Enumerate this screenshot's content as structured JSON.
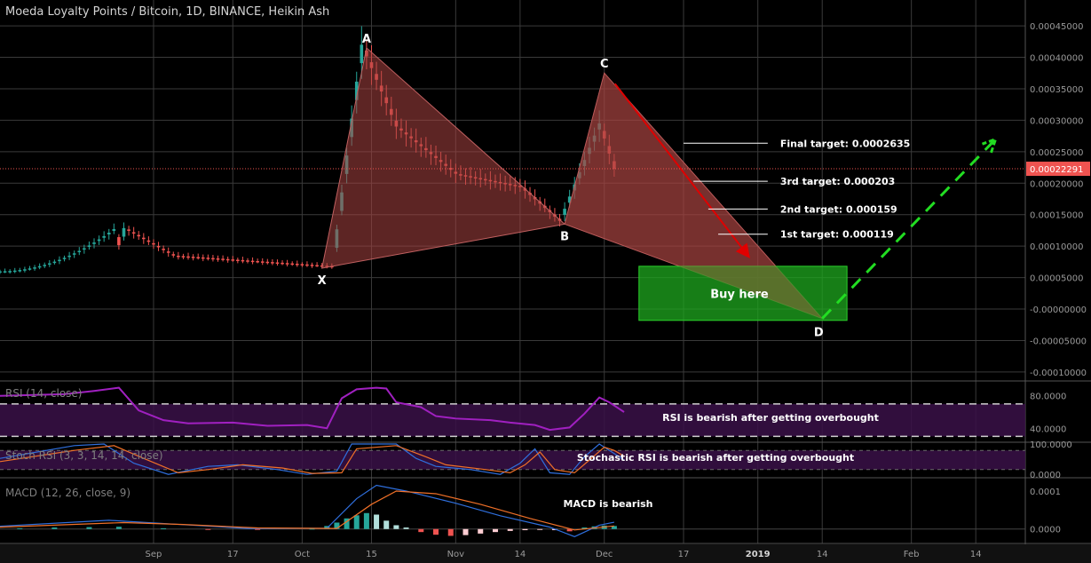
{
  "header": {
    "title": "Moeda Loyalty Points / Bitcoin, 1D, BINANCE, Heikin Ash"
  },
  "colors": {
    "background": "#000000",
    "grid": "#3a3a3a",
    "bull": "#26a69a",
    "bear": "#ef5350",
    "pattern_fill": "#a94442",
    "buy_zone": "#1fa81f",
    "target_arrow": "#e00000",
    "forecast_arrow": "#22dd22",
    "rsi_line": "#a020c0",
    "band_fill": "#3a1048",
    "macd_line": "#2f6fdd",
    "signal_line": "#f07028"
  },
  "chart_data": [
    {
      "type": "candlestick",
      "name": "main",
      "title": "Moeda Loyalty Points / Bitcoin, 1D, BINANCE, Heikin Ash",
      "ylim": [
        -0.00011,
        0.00046
      ],
      "y_ticks": [
        "0.00045000",
        "0.00040000",
        "0.00035000",
        "0.00030000",
        "0.00025000",
        "0.00020000",
        "0.00015000",
        "0.00010000",
        "0.00005000",
        "-0.00000000",
        "-0.00005000",
        "-0.00010000"
      ],
      "y_tick_values": [
        0.00045,
        0.0004,
        0.00035,
        0.0003,
        0.00025,
        0.0002,
        0.00015,
        0.0001,
        5e-05,
        0,
        -5e-05,
        -0.0001
      ],
      "x_ticks": [
        "Sep",
        "17",
        "Oct",
        "15",
        "Nov",
        "14",
        "Dec",
        "17",
        "2019",
        "14",
        "Feb",
        "14"
      ],
      "x_tick_dates": [
        "2018-09-01",
        "2018-09-17",
        "2018-10-01",
        "2018-10-15",
        "2018-11-01",
        "2018-11-14",
        "2018-12-01",
        "2018-12-17",
        "2019-01-01",
        "2019-01-14",
        "2019-02-01",
        "2019-02-14"
      ],
      "current_price": {
        "label": "0.00022291",
        "value": 0.00022291,
        "color": "#ef5350"
      },
      "key_prices": [
        {
          "date": "2018-08-25",
          "price": 0.000133
        },
        {
          "date": "2018-09-05",
          "price": 8.5e-05
        },
        {
          "date": "2018-10-07",
          "price": 6.8e-05
        },
        {
          "date": "2018-10-13",
          "price": 0.00042
        },
        {
          "date": "2018-10-20",
          "price": 0.00029
        },
        {
          "date": "2018-11-01",
          "price": 0.000215
        },
        {
          "date": "2018-11-14",
          "price": 0.000195
        },
        {
          "date": "2018-11-22",
          "price": 0.00014
        },
        {
          "date": "2018-11-30",
          "price": 0.000295
        },
        {
          "date": "2018-12-03",
          "price": 0.000223
        }
      ],
      "pattern_points": [
        {
          "label": "X",
          "date": "2018-10-05",
          "price": 6.5e-05
        },
        {
          "label": "A",
          "date": "2018-10-14",
          "price": 0.000415
        },
        {
          "label": "B",
          "date": "2018-11-23",
          "price": 0.000135
        },
        {
          "label": "C",
          "date": "2018-12-01",
          "price": 0.000375
        },
        {
          "label": "D",
          "date": "2019-01-14",
          "price": -1.5e-05
        }
      ],
      "targets": [
        {
          "label": "Final target: 0.0002635",
          "price": 0.0002635
        },
        {
          "label": "3rd target: 0.000203",
          "price": 0.000203
        },
        {
          "label": "2nd target: 0.000159",
          "price": 0.000159
        },
        {
          "label": "1st target: 0.000119",
          "price": 0.000119
        }
      ],
      "buy_zone": {
        "label": "Buy here",
        "date_from": "2018-12-08",
        "date_to": "2019-01-19",
        "price_from": -1.8e-05,
        "price_to": 6.8e-05
      },
      "forecast": {
        "from_date": "2019-01-14",
        "from_price": -1.5e-05,
        "to_date": "2019-02-18",
        "to_price": 0.00027
      }
    },
    {
      "type": "line",
      "name": "rsi",
      "title": "RSI (14, close)",
      "y_ticks": [
        "80.0000",
        "40.0000"
      ],
      "band": [
        30,
        70
      ],
      "ylim": [
        25,
        95
      ],
      "annotation": "RSI is bearish after getting overbought",
      "series": [
        {
          "values": [
            [
              "2018-08-01",
              80
            ],
            [
              "2018-08-14",
              82
            ],
            [
              "2018-08-20",
              86
            ],
            [
              "2018-08-25",
              90
            ],
            [
              "2018-08-29",
              62
            ],
            [
              "2018-09-03",
              50
            ],
            [
              "2018-09-08",
              46
            ],
            [
              "2018-09-17",
              47
            ],
            [
              "2018-09-24",
              43
            ],
            [
              "2018-10-02",
              44
            ],
            [
              "2018-10-06",
              40
            ],
            [
              "2018-10-09",
              77
            ],
            [
              "2018-10-12",
              88
            ],
            [
              "2018-10-16",
              90
            ],
            [
              "2018-10-18",
              89
            ],
            [
              "2018-10-20",
              72
            ],
            [
              "2018-10-25",
              66
            ],
            [
              "2018-10-28",
              55
            ],
            [
              "2018-11-01",
              52
            ],
            [
              "2018-11-08",
              50
            ],
            [
              "2018-11-12",
              47
            ],
            [
              "2018-11-17",
              44
            ],
            [
              "2018-11-20",
              38
            ],
            [
              "2018-11-24",
              41
            ],
            [
              "2018-11-27",
              58
            ],
            [
              "2018-11-30",
              78
            ],
            [
              "2018-12-02",
              72
            ],
            [
              "2018-12-04",
              64
            ],
            [
              "2018-12-05",
              60
            ]
          ]
        }
      ]
    },
    {
      "type": "line",
      "name": "stoch_rsi",
      "title": "Stoch RSI (3, 3, 14, 14, close)",
      "y_ticks": [
        "100.0000",
        "0.0000"
      ],
      "ylim": [
        0,
        100
      ],
      "annotation": "Stochastic RSI is bearish after getting overbought",
      "series": [
        {
          "values": [
            [
              "2018-08-01",
              55
            ],
            [
              "2018-08-16",
              95
            ],
            [
              "2018-08-22",
              100
            ],
            [
              "2018-08-28",
              40
            ],
            [
              "2018-09-04",
              5
            ],
            [
              "2018-09-12",
              30
            ],
            [
              "2018-09-18",
              35
            ],
            [
              "2018-09-26",
              20
            ],
            [
              "2018-10-02",
              5
            ],
            [
              "2018-10-08",
              15
            ],
            [
              "2018-10-11",
              100
            ],
            [
              "2018-10-20",
              100
            ],
            [
              "2018-10-24",
              55
            ],
            [
              "2018-10-28",
              30
            ],
            [
              "2018-11-04",
              20
            ],
            [
              "2018-11-10",
              5
            ],
            [
              "2018-11-14",
              40
            ],
            [
              "2018-11-17",
              85
            ],
            [
              "2018-11-20",
              10
            ],
            [
              "2018-11-24",
              5
            ],
            [
              "2018-11-27",
              60
            ],
            [
              "2018-11-30",
              100
            ],
            [
              "2018-12-03",
              70
            ],
            [
              "2018-12-05",
              50
            ]
          ]
        },
        {
          "values": [
            [
              "2018-08-01",
              45
            ],
            [
              "2018-08-16",
              80
            ],
            [
              "2018-08-24",
              95
            ],
            [
              "2018-08-30",
              55
            ],
            [
              "2018-09-06",
              10
            ],
            [
              "2018-09-12",
              20
            ],
            [
              "2018-09-19",
              35
            ],
            [
              "2018-09-27",
              25
            ],
            [
              "2018-10-03",
              8
            ],
            [
              "2018-10-09",
              10
            ],
            [
              "2018-10-12",
              85
            ],
            [
              "2018-10-20",
              95
            ],
            [
              "2018-10-26",
              60
            ],
            [
              "2018-10-30",
              35
            ],
            [
              "2018-11-06",
              22
            ],
            [
              "2018-11-12",
              10
            ],
            [
              "2018-11-15",
              35
            ],
            [
              "2018-11-18",
              75
            ],
            [
              "2018-11-21",
              20
            ],
            [
              "2018-11-25",
              10
            ],
            [
              "2018-11-28",
              50
            ],
            [
              "2018-12-01",
              90
            ],
            [
              "2018-12-03",
              80
            ],
            [
              "2018-12-05",
              62
            ]
          ]
        }
      ]
    },
    {
      "type": "line",
      "name": "macd",
      "title": "MACD (12, 26, close, 9)",
      "y_ticks": [
        "0.0001",
        "0.0000"
      ],
      "ylim": [
        -3.8e-05,
        0.000128
      ],
      "annotation": "MACD is bearish",
      "series": [
        {
          "values": [
            [
              "2018-08-01",
              7.5e-06
            ],
            [
              "2018-08-23",
              2.3e-05
            ],
            [
              "2018-09-05",
              1.3e-05
            ],
            [
              "2018-09-20",
              1.5e-06
            ],
            [
              "2018-10-06",
              2e-06
            ],
            [
              "2018-10-12",
              8e-05
            ],
            [
              "2018-10-16",
              0.000115
            ],
            [
              "2018-10-22",
              0.0001
            ],
            [
              "2018-11-01",
              6.8e-05
            ],
            [
              "2018-11-10",
              3.5e-05
            ],
            [
              "2018-11-20",
              5e-06
            ],
            [
              "2018-11-25",
              -2e-05
            ],
            [
              "2018-11-30",
              1e-05
            ],
            [
              "2018-12-03",
              1.8e-05
            ]
          ]
        },
        {
          "values": [
            [
              "2018-08-01",
              5e-06
            ],
            [
              "2018-08-26",
              1.7e-05
            ],
            [
              "2018-09-07",
              1.2e-05
            ],
            [
              "2018-09-22",
              3e-06
            ],
            [
              "2018-10-08",
              1.5e-06
            ],
            [
              "2018-10-15",
              6.5e-05
            ],
            [
              "2018-10-20",
              0.0001
            ],
            [
              "2018-10-28",
              9.3e-05
            ],
            [
              "2018-11-06",
              6.5e-05
            ],
            [
              "2018-11-16",
              2.8e-05
            ],
            [
              "2018-11-25",
              -2.5e-06
            ],
            [
              "2018-12-03",
              8e-06
            ]
          ]
        }
      ],
      "histogram": [
        [
          "2018-08-05",
          2e-06
        ],
        [
          "2018-08-12",
          4e-06
        ],
        [
          "2018-08-19",
          5e-06
        ],
        [
          "2018-08-25",
          6e-06
        ],
        [
          "2018-09-03",
          2e-06
        ],
        [
          "2018-09-12",
          -2e-06
        ],
        [
          "2018-09-22",
          -1e-06
        ],
        [
          "2018-10-03",
          1e-06
        ],
        [
          "2018-10-06",
          8e-06
        ],
        [
          "2018-10-08",
          1.7e-05
        ],
        [
          "2018-10-10",
          2.8e-05
        ],
        [
          "2018-10-12",
          3.6e-05
        ],
        [
          "2018-10-14",
          4.2e-05
        ],
        [
          "2018-10-16",
          3.8e-05
        ],
        [
          "2018-10-18",
          2.2e-05
        ],
        [
          "2018-10-20",
          1e-05
        ],
        [
          "2018-10-22",
          4e-06
        ],
        [
          "2018-10-25",
          -8e-06
        ],
        [
          "2018-10-28",
          -1.5e-05
        ],
        [
          "2018-10-31",
          -1.8e-05
        ],
        [
          "2018-11-03",
          -1.6e-05
        ],
        [
          "2018-11-06",
          -1.2e-05
        ],
        [
          "2018-11-09",
          -8e-06
        ],
        [
          "2018-11-12",
          -5e-06
        ],
        [
          "2018-11-15",
          -3e-06
        ],
        [
          "2018-11-18",
          -2e-06
        ],
        [
          "2018-11-21",
          -3e-06
        ],
        [
          "2018-11-24",
          -6e-06
        ],
        [
          "2018-11-27",
          4e-06
        ],
        [
          "2018-11-29",
          7e-06
        ],
        [
          "2018-12-01",
          9e-06
        ],
        [
          "2018-12-03",
          8e-06
        ]
      ]
    }
  ]
}
